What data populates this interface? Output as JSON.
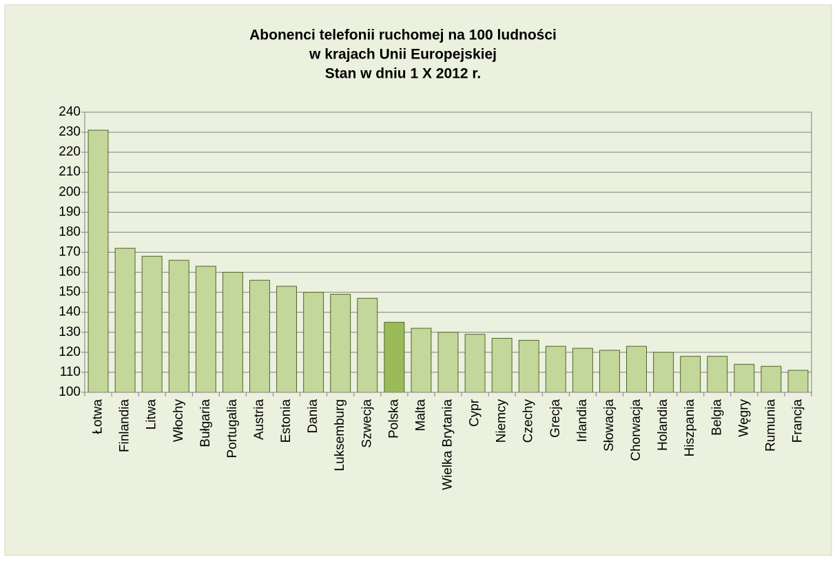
{
  "chart_data": {
    "type": "bar",
    "title": [
      "Abonenci telefonii ruchomej na 100 ludności",
      "w krajach Unii Europejskiej",
      "Stan w dniu 1 X 2012 r."
    ],
    "categories": [
      "Łotwa",
      "Finlandia",
      "Litwa",
      "Włochy",
      "Bułgaria",
      "Portugalia",
      "Austria",
      "Estonia",
      "Dania",
      "Luksemburg",
      "Szwecja",
      "Polska",
      "Malta",
      "Wielka Brytania",
      "Cypr",
      "Niemcy",
      "Czechy",
      "Grecja",
      "Irlandia",
      "Słowacja",
      "Chorwacja",
      "Holandia",
      "Hiszpania",
      "Belgia",
      "Węgry",
      "Rumunia",
      "Francja"
    ],
    "values": [
      231,
      172,
      168,
      166,
      163,
      160,
      156,
      153,
      150,
      149,
      147,
      135,
      132,
      130,
      129,
      127,
      126,
      123,
      122,
      121,
      123,
      120,
      118,
      118,
      114,
      113,
      111
    ],
    "colors": [
      "#c4d79b",
      "#c4d79b",
      "#c4d79b",
      "#c4d79b",
      "#c4d79b",
      "#c4d79b",
      "#c4d79b",
      "#c4d79b",
      "#c4d79b",
      "#c4d79b",
      "#c4d79b",
      "#9bbb59",
      "#c4d79b",
      "#c4d79b",
      "#c4d79b",
      "#c4d79b",
      "#c4d79b",
      "#c4d79b",
      "#c4d79b",
      "#c4d79b",
      "#c4d79b",
      "#c4d79b",
      "#c4d79b",
      "#c4d79b",
      "#c4d79b",
      "#c4d79b",
      "#c4d79b"
    ],
    "ylim": [
      100,
      240
    ],
    "yticks": [
      100,
      110,
      120,
      130,
      140,
      150,
      160,
      170,
      180,
      190,
      200,
      210,
      220,
      230,
      240
    ],
    "grid": true
  }
}
